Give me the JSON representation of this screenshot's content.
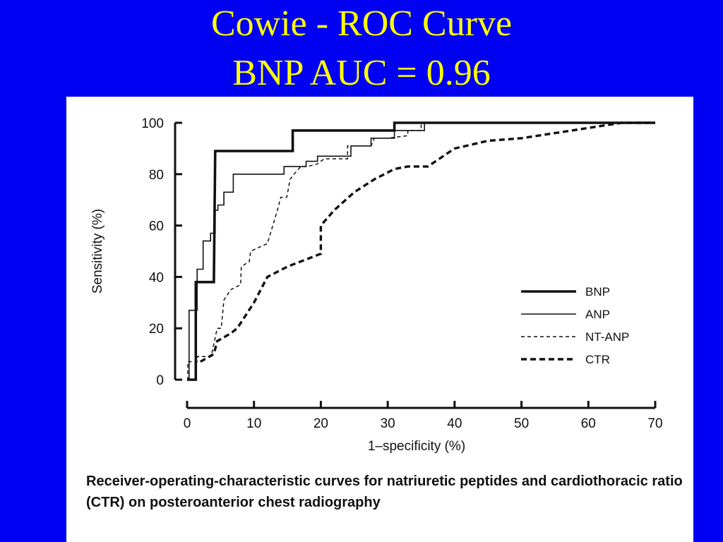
{
  "slide": {
    "title_line1": "Cowie - ROC Curve",
    "title_line2": "BNP AUC = 0.96",
    "title_color": "#ffff00",
    "background_color": "#0000f2"
  },
  "caption": "Receiver-operating-characteristic curves for natriuretic peptides and cardiothoracic ratio (CTR) on posteroanterior chest radiography",
  "chart_data": {
    "type": "line",
    "title": "",
    "xlabel": "1–specificity (%)",
    "ylabel": "Sensitivity (%)",
    "xlim": [
      0,
      70
    ],
    "ylim": [
      0,
      100
    ],
    "xticks": [
      "0",
      "10",
      "20",
      "30",
      "40",
      "50",
      "60",
      "70"
    ],
    "yticks": [
      "0",
      "20",
      "40",
      "60",
      "80",
      "100"
    ],
    "grid": false,
    "legend_position": "lower-right",
    "series": [
      {
        "name": "BNP",
        "style": "thick-solid",
        "x": [
          0,
          1.3,
          1.3,
          4,
          4.2,
          15.8,
          15.8,
          31,
          31,
          70
        ],
        "y": [
          0,
          0,
          38,
          38,
          89,
          89,
          97,
          97,
          100,
          100
        ]
      },
      {
        "name": "ANP",
        "style": "thin-solid",
        "x": [
          0,
          0.3,
          0.3,
          1.5,
          1.5,
          2.4,
          2.4,
          3.5,
          3.5,
          4.2,
          4.2,
          4.6,
          4.6,
          5.5,
          5.5,
          6.9,
          6.9,
          14.5,
          14.5,
          16,
          16,
          17.8,
          17.8,
          19.5,
          19.5,
          24.5,
          24.5,
          27.5,
          27.5,
          31,
          31,
          35.5,
          35.5,
          70
        ],
        "y": [
          0,
          0,
          27,
          27,
          43,
          43,
          54,
          54,
          57,
          57,
          66,
          66,
          68,
          68,
          73,
          73,
          80,
          80,
          83,
          83,
          83,
          83,
          85,
          85,
          87,
          87,
          91,
          91,
          94,
          94,
          97,
          97,
          100,
          100
        ]
      },
      {
        "name": "NT-ANP",
        "style": "thin-dashed",
        "x": [
          0,
          0.1,
          0.1,
          1.5,
          1.5,
          3.6,
          4.5,
          5.1,
          5.5,
          6.5,
          8.0,
          8.1,
          9.3,
          9.5,
          12,
          12,
          13.5,
          14,
          14.9,
          15.4,
          16,
          17,
          18,
          19.5,
          20.5,
          24,
          24,
          27.5,
          28,
          30,
          33,
          33,
          35,
          35,
          70
        ],
        "y": [
          0,
          0,
          7,
          7,
          9,
          9,
          20,
          20,
          31,
          35,
          37,
          44,
          46,
          50,
          53,
          53,
          66,
          71,
          71,
          78,
          80,
          83,
          83,
          84,
          86,
          86,
          91,
          91,
          94,
          94,
          95,
          97,
          97,
          100,
          100
        ]
      },
      {
        "name": "CTR",
        "style": "thick-dashed",
        "x": [
          2,
          4,
          4.5,
          6.5,
          7.5,
          10,
          12,
          15,
          20,
          20,
          22,
          25,
          28,
          31,
          33,
          36,
          40,
          45,
          50,
          55,
          60,
          65,
          70
        ],
        "y": [
          7,
          10,
          15,
          18,
          20,
          30,
          40,
          44,
          49,
          60,
          66,
          73,
          78,
          82,
          83,
          83,
          90,
          93,
          94,
          96,
          98,
          100,
          100
        ]
      }
    ]
  }
}
